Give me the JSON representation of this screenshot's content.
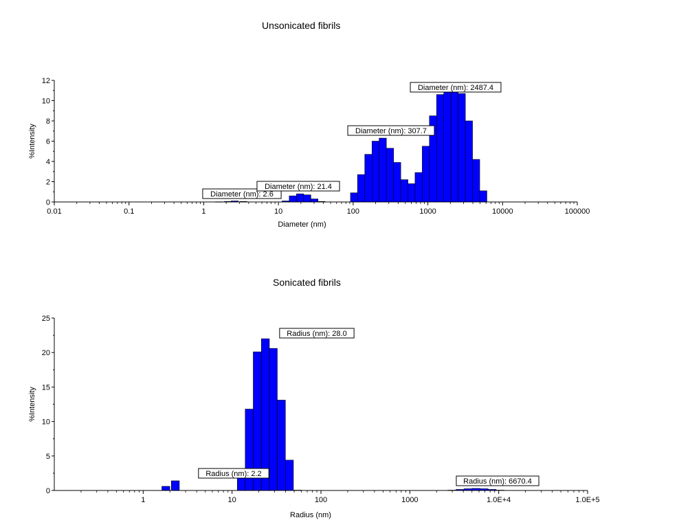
{
  "chart_data": [
    {
      "type": "bar",
      "title": "Unsonicated fibrils",
      "xlabel": "Diameter (nm)",
      "ylabel": "%Intensity",
      "x_scale": "log",
      "xlim": [
        0.01,
        100000
      ],
      "ylim": [
        0,
        12
      ],
      "x_ticks": [
        "0.01",
        "0.1",
        "1",
        "10",
        "100",
        "1000",
        "10000",
        "100000"
      ],
      "y_ticks": [
        0,
        2,
        4,
        6,
        8,
        10,
        12
      ],
      "grid": false,
      "bar_color": "#0000ff",
      "series": [
        {
          "x": [
            1.6,
            2.1,
            2.6,
            3.4,
            12.5,
            15.6,
            19.5,
            24.3,
            30.3,
            37.8,
            103,
            128,
            160,
            200,
            249,
            311,
            388,
            484,
            604,
            753,
            940,
            1173,
            1463,
            1825,
            2277,
            2840,
            3543,
            4420,
            5514
          ],
          "values": [
            0.02,
            0.05,
            0.1,
            0.05,
            0.1,
            0.6,
            0.8,
            0.7,
            0.3,
            0.05,
            0.9,
            2.7,
            4.7,
            6.0,
            6.3,
            5.3,
            3.9,
            2.2,
            1.8,
            2.9,
            5.5,
            8.5,
            10.6,
            11.5,
            11.5,
            10.7,
            8.0,
            4.2,
            1.1
          ]
        }
      ],
      "annotations": [
        "Diameter (nm): 2.6",
        "Diameter (nm): 21.4",
        "Diameter (nm): 307.7",
        "Diameter (nm): 2487.4"
      ]
    },
    {
      "type": "bar",
      "title": "Sonicated fibrils",
      "xlabel": "Radius (nm)",
      "ylabel": "%Intensity",
      "x_scale": "log",
      "xlim": [
        0.1,
        100000
      ],
      "ylim": [
        0,
        25
      ],
      "x_ticks": [
        "1",
        "10",
        "100",
        "1000",
        "1.0E+4",
        "1.0E+5"
      ],
      "y_ticks": [
        0,
        5,
        10,
        15,
        20,
        25
      ],
      "grid": false,
      "bar_color": "#0000ff",
      "series": [
        {
          "x": [
            1.8,
            2.3,
            12.7,
            15.6,
            19.2,
            23.7,
            29.1,
            35.9,
            44.2,
            54.5,
            2973,
            3662,
            4512,
            5558,
            6847,
            8434,
            10390
          ],
          "values": [
            0.6,
            1.4,
            2.9,
            11.8,
            20.1,
            22.0,
            20.6,
            13.1,
            4.4,
            0.05,
            0.05,
            0.15,
            0.25,
            0.3,
            0.25,
            0.15,
            0.05
          ]
        }
      ],
      "annotations": [
        "Radius (nm): 2.2",
        "Radius (nm): 28.0",
        "Radius (nm): 6670.4"
      ]
    }
  ]
}
